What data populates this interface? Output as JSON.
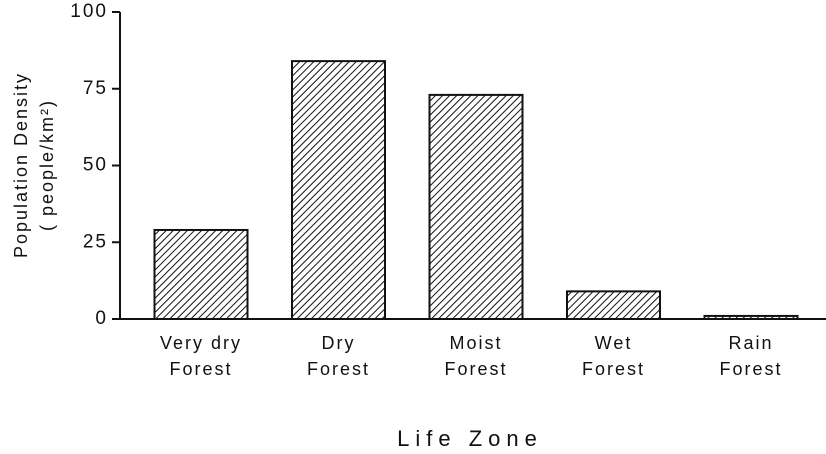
{
  "chart_data": {
    "type": "bar",
    "categories": [
      "Very dry\nForest",
      "Dry\nForest",
      "Moist\nForest",
      "Wet\nForest",
      "Rain\nForest"
    ],
    "values": [
      29,
      84,
      73,
      9,
      1
    ],
    "color": "#111111",
    "xlabel": "Life Zone",
    "ylabel": [
      "Population Density",
      "( people/km²)"
    ],
    "ylim": [
      0,
      100
    ],
    "yticks": [
      0,
      25,
      50,
      75,
      100
    ],
    "grid": false
  }
}
